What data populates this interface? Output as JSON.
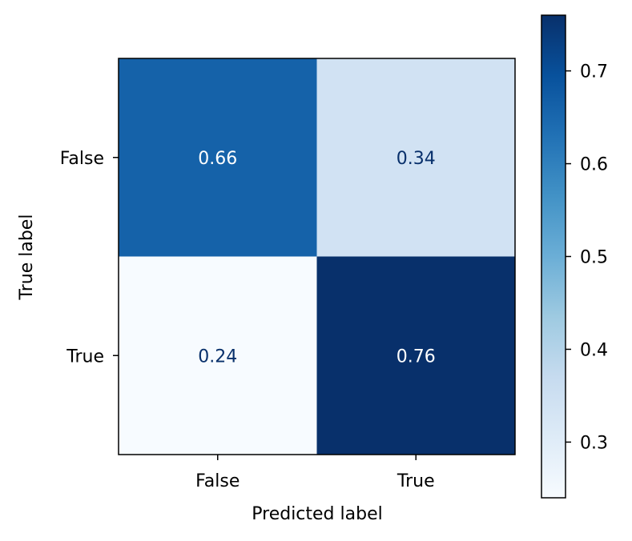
{
  "chart_data": {
    "type": "heatmap",
    "title": "",
    "xlabel": "Predicted label",
    "ylabel": "True label",
    "x_categories": [
      "False",
      "True"
    ],
    "y_categories": [
      "False",
      "True"
    ],
    "values": [
      [
        0.66,
        0.34
      ],
      [
        0.24,
        0.76
      ]
    ],
    "cell_labels": [
      [
        "0.66",
        "0.34"
      ],
      [
        "0.24",
        "0.76"
      ]
    ],
    "colormap": "Blues",
    "colorbar": {
      "vmin": 0.24,
      "vmax": 0.76,
      "ticks": [
        0.3,
        0.4,
        0.5,
        0.6,
        0.7
      ],
      "tick_labels": [
        "0.3",
        "0.4",
        "0.5",
        "0.6",
        "0.7"
      ]
    },
    "colors": {
      "text_light": "#ffffff",
      "text_dark": "#08306b",
      "axis": "#000000"
    }
  }
}
